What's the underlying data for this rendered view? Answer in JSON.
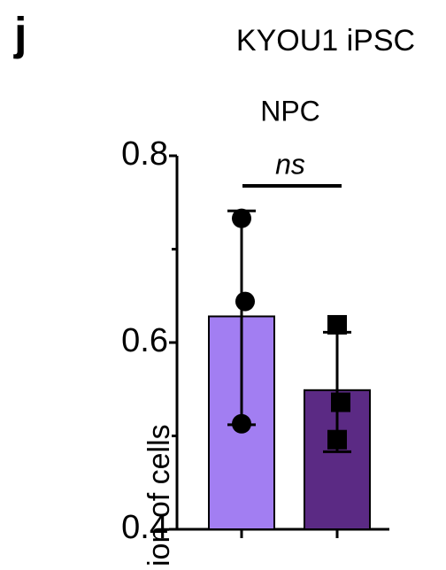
{
  "chart_data": {
    "type": "bar",
    "panel_label": "j",
    "title": "KYOU1 iPSC",
    "subtitle": "NPC",
    "annotation": "ns",
    "ylabel": "ion of cells",
    "categories": [
      null,
      null
    ],
    "series": [
      {
        "name": null,
        "colors": [
          "#a27ef2",
          "#5b2a84"
        ],
        "values": [
          0.628,
          0.549
        ],
        "error_high": [
          0.741,
          0.611
        ],
        "error_low": [
          0.512,
          0.483
        ],
        "points": [
          [
            0.733,
            0.644,
            0.513
          ],
          [
            0.619,
            0.536,
            0.496
          ]
        ],
        "markers": [
          "circle",
          "square"
        ]
      }
    ],
    "ylim": [
      0.4,
      0.8
    ],
    "yticks": [
      {
        "value": 0.4,
        "label": "0.4"
      },
      {
        "value": 0.6,
        "label": "0.6"
      },
      {
        "value": 0.8,
        "label": "0.8"
      }
    ],
    "minor_yticks": [
      0.5,
      0.7
    ]
  }
}
